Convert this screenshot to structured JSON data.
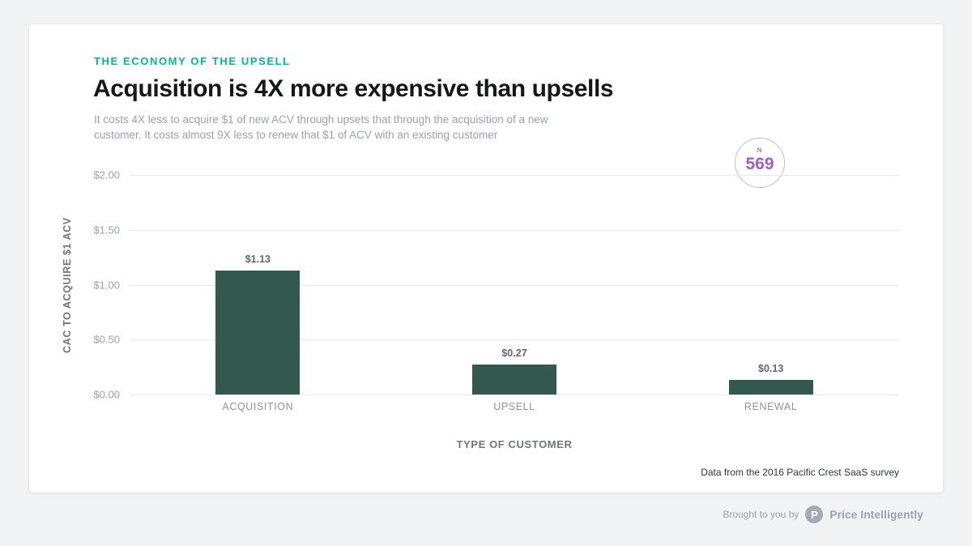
{
  "colors": {
    "page_bg": "#f2f3f5",
    "card_bg": "#ffffff",
    "accent_teal": "#00b79e",
    "bar_green": "#33594e",
    "badge_purple": "#a55bcb"
  },
  "header": {
    "eyebrow": "THE ECONOMY OF THE UPSELL",
    "title": "Acquisition is 4X more expensive than upsells",
    "subtitle_lines": [
      "It costs 4X less to acquire $1 of new ACV through upsets that through the acquisition of a new",
      "customer. It costs almost 9X less to renew that $1 of ACV with an existing customer"
    ]
  },
  "badge": {
    "label": "N",
    "value": "569"
  },
  "chart_data": {
    "type": "bar",
    "categories": [
      "ACQUISITION",
      "UPSELL",
      "RENEWAL"
    ],
    "values": [
      1.13,
      0.27,
      0.13
    ],
    "value_labels": [
      "$1.13",
      "$0.27",
      "$0.13"
    ],
    "title": "Acquisition is 4X more expensive than upsells",
    "xlabel": "TYPE OF CUSTOMER",
    "ylabel": "CAC TO ACQUIRE $1 ACV",
    "ylim": [
      0,
      2
    ],
    "yticks": [
      2.0,
      1.5,
      1.0,
      0.5,
      0.0
    ],
    "ytick_labels": [
      "$2.00",
      "$1.50",
      "$1.00",
      "$0.50",
      "$0.00"
    ],
    "grid": true,
    "legend": "none"
  },
  "source": "Data from the 2016 Pacific Crest SaaS survey",
  "footer": {
    "brought": "Brought to you by",
    "logo_letter": "P",
    "brand": "Price Intelligently"
  }
}
